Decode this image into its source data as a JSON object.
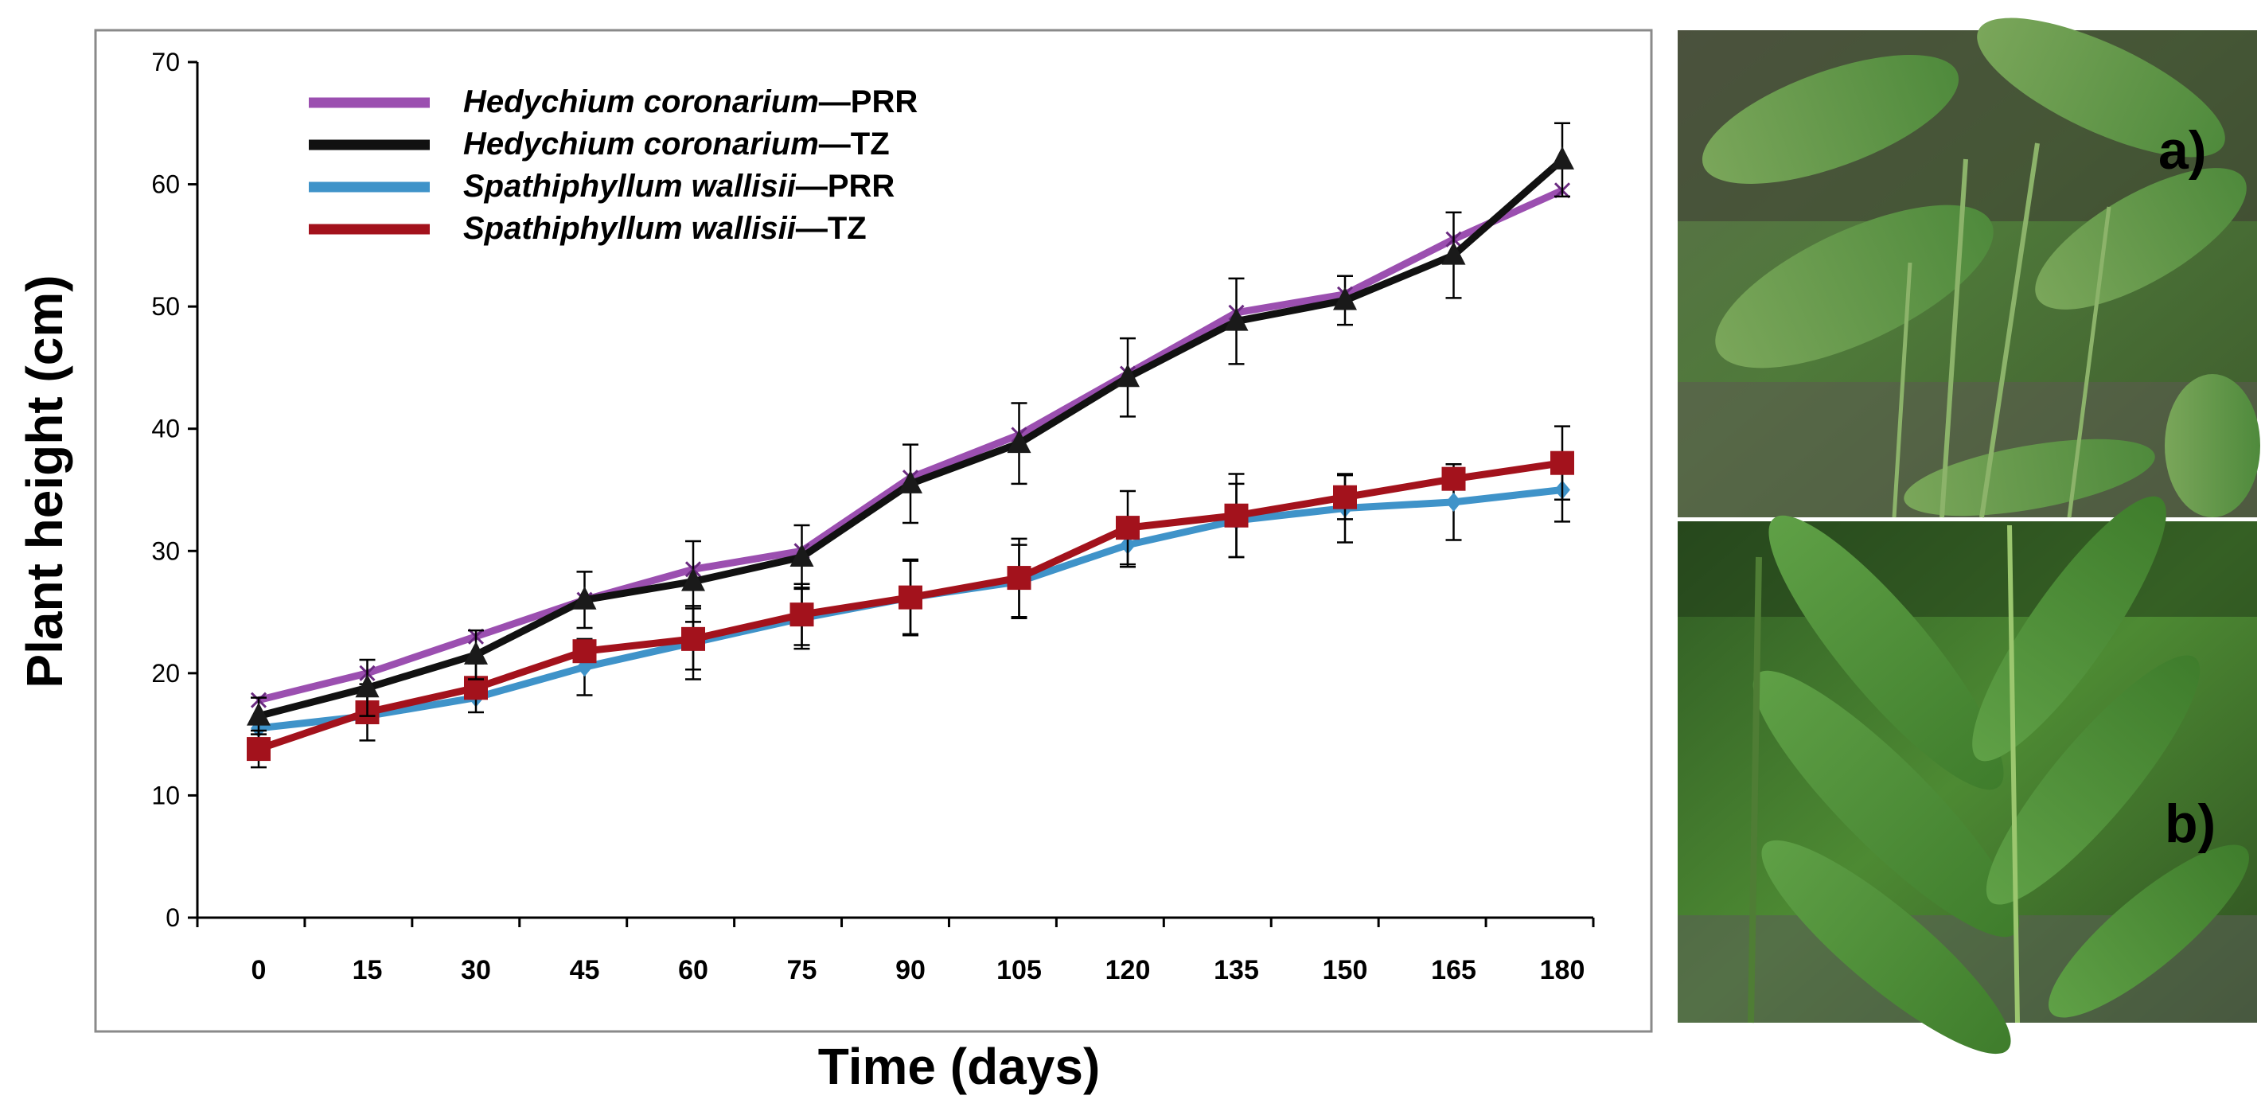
{
  "chart_data": {
    "type": "line",
    "title": "",
    "xlabel": "Time (days)",
    "ylabel": "Plant height (cm)",
    "x": [
      0,
      15,
      30,
      45,
      60,
      75,
      90,
      105,
      120,
      135,
      150,
      165,
      180
    ],
    "ylim": [
      0,
      70
    ],
    "yticks": [
      0,
      10,
      20,
      30,
      40,
      50,
      60,
      70
    ],
    "grid": false,
    "legend_position": "top-left",
    "series": [
      {
        "name_italic": "Hedychium coronarium",
        "name_suffix": "—PRR",
        "color": "#9b4fb0",
        "marker": "x",
        "values": [
          17.8,
          20.0,
          23.0,
          26.0,
          28.5,
          30.0,
          36.0,
          39.5,
          44.5,
          49.5,
          51.0,
          55.5,
          59.5
        ],
        "errors": [
          0,
          0,
          0,
          0,
          0,
          0,
          0,
          0,
          0,
          0,
          0,
          0,
          0
        ]
      },
      {
        "name_italic": "Hedychium coronarium",
        "name_suffix": "—TZ",
        "color": "#111111",
        "marker": "triangle",
        "values": [
          16.5,
          18.8,
          21.5,
          26.0,
          27.5,
          29.5,
          35.5,
          38.8,
          44.2,
          48.8,
          50.5,
          54.2,
          62.0
        ],
        "errors": [
          1.5,
          2.3,
          2.0,
          2.3,
          3.3,
          2.6,
          3.2,
          3.3,
          3.2,
          3.5,
          2.0,
          3.5,
          3.0
        ]
      },
      {
        "name_italic": "Spathiphyllum wallisii",
        "name_suffix": "—PRR",
        "color": "#3f93c9",
        "marker": "diamond",
        "values": [
          15.5,
          16.5,
          18.0,
          20.5,
          22.5,
          24.5,
          26.2,
          27.5,
          30.5,
          32.5,
          33.5,
          34.0,
          35.0
        ],
        "errors": [
          0,
          0,
          0,
          2.3,
          3.0,
          2.5,
          3.0,
          3.0,
          1.8,
          3.0,
          2.8,
          3.1,
          2.6
        ]
      },
      {
        "name_italic": "Spathiphyllum wallisii",
        "name_suffix": "—TZ",
        "color": "#a3121c",
        "marker": "square",
        "values": [
          13.8,
          16.8,
          18.8,
          21.8,
          22.8,
          24.8,
          26.2,
          27.8,
          31.9,
          32.9,
          34.4,
          35.9,
          37.2
        ],
        "errors": [
          1.5,
          2.3,
          2.0,
          0,
          2.5,
          2.5,
          3.1,
          3.2,
          3.0,
          3.4,
          1.8,
          0,
          3.0
        ]
      }
    ]
  },
  "photos": [
    {
      "label": "a)",
      "subject": "Spathiphyllum wallisii"
    },
    {
      "label": "b)",
      "subject": "Hedychium coronarium"
    }
  ]
}
